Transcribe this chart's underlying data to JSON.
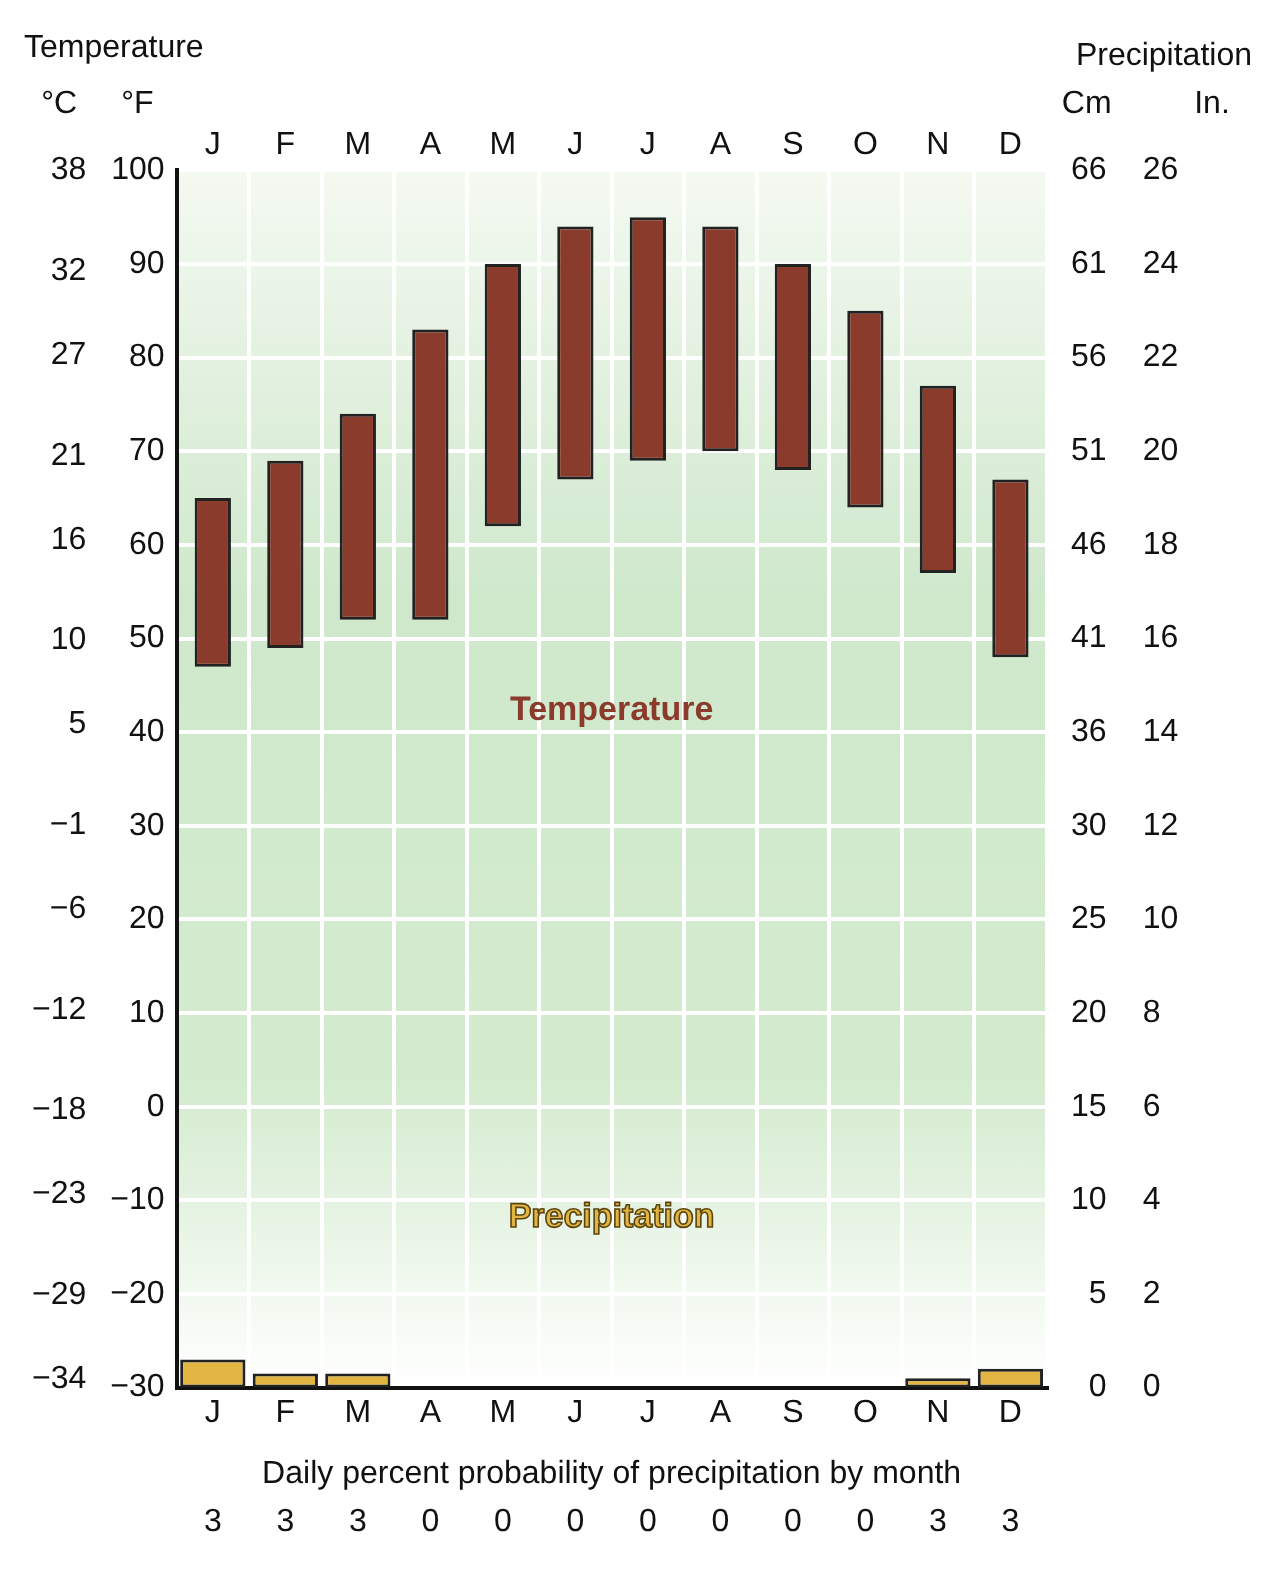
{
  "chart_data": {
    "type": "bar",
    "categories": [
      "J",
      "F",
      "M",
      "A",
      "M",
      "J",
      "J",
      "A",
      "S",
      "O",
      "N",
      "D"
    ],
    "series": [
      {
        "name": "Temperature",
        "axis": "y",
        "color": "#8a3b2c",
        "base": [
          47,
          49,
          52,
          52,
          62,
          67,
          69,
          70,
          68,
          64,
          57,
          48
        ],
        "values": [
          18,
          20,
          22,
          31,
          28,
          27,
          26,
          24,
          22,
          21,
          20,
          19
        ]
      },
      {
        "name": "Precipitation",
        "axis": "y2",
        "color": "#e2b441",
        "values": [
          0.6,
          0.3,
          0.3,
          0,
          0,
          0,
          0,
          0,
          0,
          0,
          0.2,
          0.4
        ]
      }
    ],
    "ylabel": "°F",
    "y3label": "°C",
    "y2label": "In.",
    "ylim": [
      -30,
      100
    ],
    "yticks": [
      -30,
      -20,
      -10,
      0,
      10,
      20,
      30,
      40,
      50,
      60,
      70,
      80,
      90,
      100
    ],
    "y3lim": [
      -34.5,
      38
    ],
    "y3ticks": [
      -34,
      -29,
      -23,
      -18,
      -12,
      -6,
      -1,
      5,
      10,
      16,
      21,
      27,
      32,
      38
    ],
    "y2lim": [
      0,
      26
    ],
    "y2ticks": [
      0,
      2,
      4,
      6,
      8,
      10,
      12,
      14,
      16,
      18,
      20,
      22,
      24,
      26
    ],
    "xlabel": "Daily percent probability of precipitation by month",
    "annotations": [
      "Temperature",
      "Precipitation",
      "Cm",
      "0",
      "5",
      "10",
      "15",
      "20",
      "25",
      "30",
      "36",
      "41",
      "46",
      "51",
      "56",
      "61",
      "66",
      "3",
      "3",
      "3",
      "0",
      "0",
      "0",
      "0",
      "0",
      "0",
      "0",
      "3",
      "3"
    ],
    "grid": true,
    "legend": false
  }
}
